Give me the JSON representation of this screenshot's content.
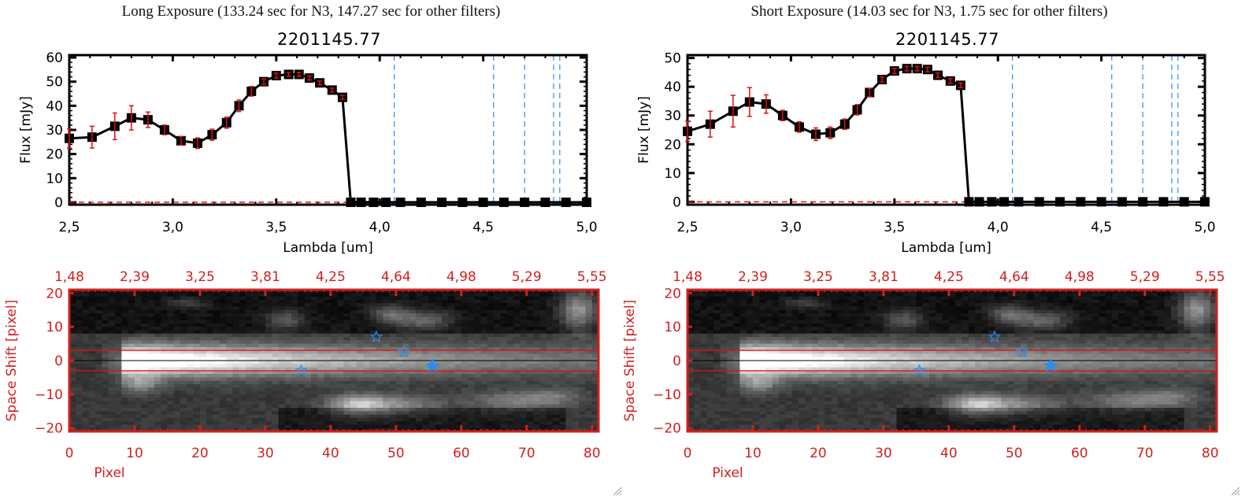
{
  "panels": [
    {
      "title": "Long Exposure (133.24 sec for N3, 147.27 sec for other filters)",
      "target_id": "2201145.77"
    },
    {
      "title": "Short Exposure (14.03 sec for N3, 1.75 sec for other filters)",
      "target_id": "2201145.77"
    }
  ],
  "colors": {
    "spectrum_line": "#000000",
    "error_bar": "#e01010",
    "filter_line": "#2a8ef0",
    "zero_line": "#e01010",
    "image_axes": "#d02020",
    "aperture_line": "#e01010",
    "center_line": "#000000",
    "star_marker": "#2a8ef0"
  },
  "chart_data": [
    {
      "type": "line",
      "title": "2201145.77",
      "panel": "Long Exposure",
      "xlabel": "Lambda [um]",
      "ylabel": "Flux [mJy]",
      "xlim": [
        2.5,
        5.0
      ],
      "ylim": [
        -1,
        61
      ],
      "xticks": [
        "2.5",
        "3.0",
        "3.5",
        "4.0",
        "4.5",
        "5.0"
      ],
      "yticks": [
        "0",
        "10",
        "20",
        "30",
        "40",
        "50",
        "60"
      ],
      "x": [
        2.5,
        2.61,
        2.72,
        2.8,
        2.88,
        2.96,
        3.04,
        3.12,
        3.19,
        3.26,
        3.32,
        3.38,
        3.44,
        3.5,
        3.56,
        3.61,
        3.66,
        3.71,
        3.77,
        3.82,
        3.86,
        3.91,
        3.97,
        4.03,
        4.1,
        4.2,
        4.3,
        4.4,
        4.5,
        4.6,
        4.7,
        4.8,
        4.9,
        5.0
      ],
      "y": [
        26.5,
        27.0,
        31.5,
        35.0,
        34.2,
        30.0,
        25.5,
        24.5,
        28.0,
        33.0,
        40.0,
        46.0,
        50.0,
        52.5,
        53.0,
        53.0,
        51.5,
        49.5,
        46.5,
        43.5,
        0,
        0,
        0,
        0,
        0,
        0,
        0,
        0,
        0,
        0,
        0,
        0,
        0,
        0
      ],
      "yerr": [
        4.0,
        4.5,
        5.5,
        5.0,
        3.2,
        2.0,
        1.8,
        2.2,
        2.3,
        2.3,
        2.4,
        2.0,
        1.2,
        1.0,
        0.8,
        0.8,
        0.8,
        0.8,
        0.8,
        0.8,
        0,
        0,
        0,
        0,
        0,
        0,
        0,
        0,
        0,
        0,
        0,
        0,
        0,
        0
      ],
      "filter_lines_um": [
        4.07,
        4.55,
        4.7,
        4.84,
        4.87
      ],
      "zero_line": 0
    },
    {
      "type": "line",
      "title": "2201145.77",
      "panel": "Short Exposure",
      "xlabel": "Lambda [um]",
      "ylabel": "Flux [mJy]",
      "xlim": [
        2.5,
        5.0
      ],
      "ylim": [
        -1,
        51
      ],
      "xticks": [
        "2.5",
        "3.0",
        "3.5",
        "4.0",
        "4.5",
        "5.0"
      ],
      "yticks": [
        "0",
        "10",
        "20",
        "30",
        "40",
        "50"
      ],
      "x": [
        2.5,
        2.61,
        2.72,
        2.8,
        2.88,
        2.96,
        3.04,
        3.12,
        3.19,
        3.26,
        3.32,
        3.38,
        3.44,
        3.5,
        3.56,
        3.61,
        3.66,
        3.71,
        3.77,
        3.82,
        3.86,
        3.91,
        3.97,
        4.03,
        4.1,
        4.2,
        4.3,
        4.4,
        4.5,
        4.6,
        4.7,
        4.8,
        4.9,
        5.0
      ],
      "y": [
        24.5,
        27.0,
        31.5,
        34.7,
        34.0,
        30.0,
        26.0,
        23.5,
        24.0,
        27.0,
        32.0,
        38.0,
        42.5,
        45.5,
        46.3,
        46.3,
        46.0,
        44.0,
        42.0,
        40.5,
        0,
        0,
        0,
        0,
        0,
        0,
        0,
        0,
        0,
        0,
        0,
        0,
        0,
        0
      ],
      "yerr": [
        3.5,
        4.5,
        5.5,
        5.0,
        3.2,
        1.8,
        1.8,
        2.2,
        2.0,
        1.8,
        1.8,
        1.5,
        0.9,
        0.9,
        0.8,
        0.8,
        0.8,
        0.8,
        0.8,
        0.8,
        0,
        0,
        0,
        0,
        0,
        0,
        0,
        0,
        0,
        0,
        0,
        0,
        0,
        0
      ],
      "filter_lines_um": [
        4.07,
        4.55,
        4.7,
        4.84,
        4.87
      ],
      "zero_line": 0
    },
    {
      "type": "heatmap",
      "panel": "Long Exposure",
      "xlabel": "Pixel",
      "ylabel": "Space Shift [pixel]",
      "xlim": [
        0,
        81
      ],
      "ylim": [
        -21,
        21
      ],
      "xticks": [
        "0",
        "10",
        "20",
        "30",
        "40",
        "50",
        "60",
        "70",
        "80"
      ],
      "yticks": [
        "-20",
        "-10",
        "0",
        "10",
        "20"
      ],
      "top_xticks": [
        "1.48",
        "2.39",
        "3.25",
        "3.81",
        "4.25",
        "4.64",
        "4.98",
        "5.29",
        "5.55"
      ],
      "aperture_lines": [
        3,
        -3
      ],
      "center_line": 0,
      "stars": [
        {
          "x": 35.5,
          "y": -3.0,
          "filled": false
        },
        {
          "x": 47.0,
          "y": 7.0,
          "filled": false
        },
        {
          "x": 51.2,
          "y": 2.5,
          "filled": false
        },
        {
          "x": 55.6,
          "y": -1.5,
          "filled": true
        }
      ]
    },
    {
      "type": "heatmap",
      "panel": "Short Exposure",
      "xlabel": "Pixel",
      "ylabel": "Space Shift [pixel]",
      "xlim": [
        0,
        81
      ],
      "ylim": [
        -21,
        21
      ],
      "xticks": [
        "0",
        "10",
        "20",
        "30",
        "40",
        "50",
        "60",
        "70",
        "80"
      ],
      "yticks": [
        "-20",
        "-10",
        "0",
        "10",
        "20"
      ],
      "top_xticks": [
        "1.48",
        "2.39",
        "3.25",
        "3.81",
        "4.25",
        "4.64",
        "4.98",
        "5.29",
        "5.55"
      ],
      "aperture_lines": [
        3,
        -3
      ],
      "center_line": 0,
      "stars": [
        {
          "x": 35.5,
          "y": -3.0,
          "filled": false
        },
        {
          "x": 47.0,
          "y": 7.0,
          "filled": false
        },
        {
          "x": 51.2,
          "y": 2.5,
          "filled": false
        },
        {
          "x": 55.6,
          "y": -1.5,
          "filled": true
        }
      ]
    }
  ]
}
